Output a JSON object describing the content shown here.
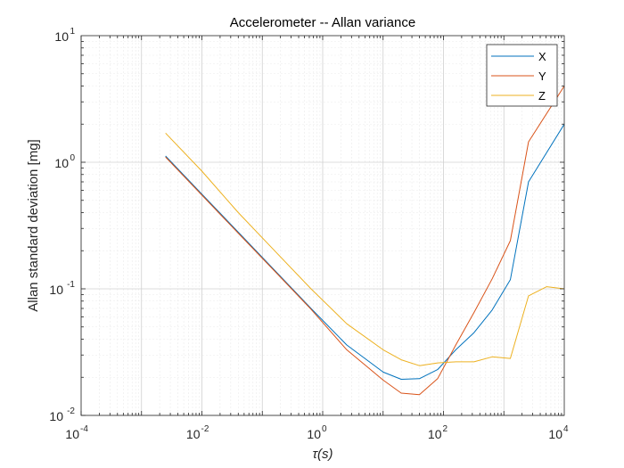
{
  "chart_data": {
    "type": "line",
    "title": "Accelerometer -- Allan variance",
    "xlabel": "τ(s)",
    "ylabel": "Allan standard deviation [mg]",
    "xscale": "log",
    "yscale": "log",
    "xlim": [
      0.0001,
      10000
    ],
    "ylim": [
      0.01,
      10
    ],
    "grid": true,
    "minor_grid": true,
    "legend_position": "top-right",
    "x_ticks": [
      {
        "base": "10",
        "exp": "-4"
      },
      {
        "base": "10",
        "exp": "-2"
      },
      {
        "base": "10",
        "exp": "0"
      },
      {
        "base": "10",
        "exp": "2"
      },
      {
        "base": "10",
        "exp": "4"
      }
    ],
    "y_ticks": [
      {
        "base": "10",
        "exp": "-2"
      },
      {
        "base": "10",
        "exp": "-1"
      },
      {
        "base": "10",
        "exp": "0"
      },
      {
        "base": "10",
        "exp": "1"
      }
    ],
    "series": [
      {
        "name": "X",
        "color": "#0072BD",
        "x": [
          0.0025,
          0.01,
          0.04,
          0.16,
          0.64,
          2.5,
          10,
          20,
          40,
          80,
          160,
          320,
          640,
          1280,
          2560,
          10000
        ],
        "y": [
          1.12,
          0.56,
          0.28,
          0.14,
          0.07,
          0.036,
          0.022,
          0.0193,
          0.0195,
          0.023,
          0.033,
          0.045,
          0.068,
          0.118,
          0.7,
          2.0
        ]
      },
      {
        "name": "Y",
        "color": "#D95319",
        "x": [
          0.0025,
          0.01,
          0.04,
          0.16,
          0.64,
          2.5,
          10,
          20,
          40,
          80,
          160,
          320,
          640,
          1280,
          2560,
          10000
        ],
        "y": [
          1.1,
          0.55,
          0.275,
          0.138,
          0.069,
          0.033,
          0.019,
          0.015,
          0.0146,
          0.0195,
          0.036,
          0.065,
          0.12,
          0.24,
          1.45,
          4.0
        ]
      },
      {
        "name": "Z",
        "color": "#EDB120",
        "x": [
          0.0025,
          0.01,
          0.04,
          0.16,
          0.64,
          2.5,
          10,
          20,
          40,
          80,
          160,
          320,
          640,
          1280,
          2560,
          5120,
          10000
        ],
        "y": [
          1.7,
          0.85,
          0.4,
          0.2,
          0.1,
          0.053,
          0.033,
          0.0275,
          0.0247,
          0.026,
          0.0265,
          0.0265,
          0.029,
          0.0282,
          0.088,
          0.104,
          0.1
        ]
      }
    ]
  }
}
